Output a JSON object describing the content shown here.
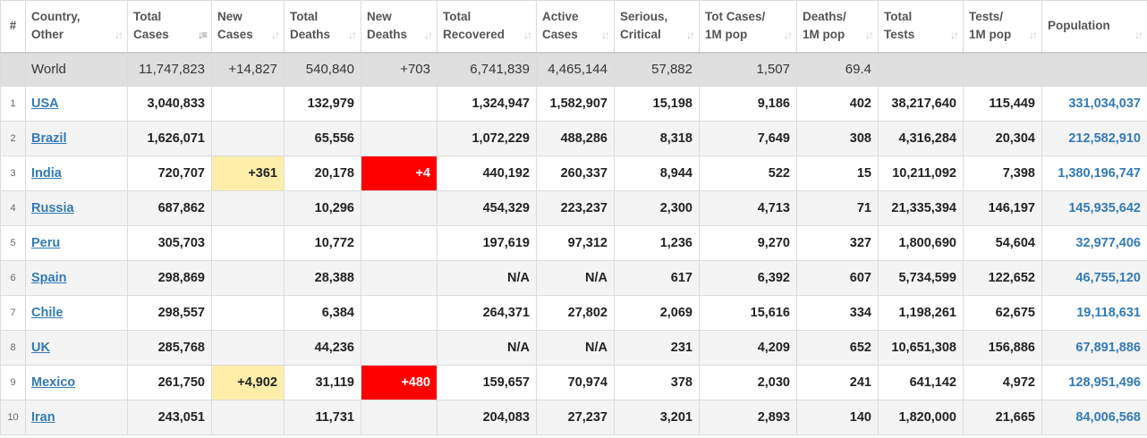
{
  "headers": [
    {
      "key": "num",
      "line1": "#",
      "line2": ""
    },
    {
      "key": "country",
      "line1": "Country,",
      "line2": "Other"
    },
    {
      "key": "total_cases",
      "line1": "Total",
      "line2": "Cases"
    },
    {
      "key": "new_cases",
      "line1": "New",
      "line2": "Cases"
    },
    {
      "key": "total_deaths",
      "line1": "Total",
      "line2": "Deaths"
    },
    {
      "key": "new_deaths",
      "line1": "New",
      "line2": "Deaths"
    },
    {
      "key": "total_recovered",
      "line1": "Total",
      "line2": "Recovered"
    },
    {
      "key": "active_cases",
      "line1": "Active",
      "line2": "Cases"
    },
    {
      "key": "serious_critical",
      "line1": "Serious,",
      "line2": "Critical"
    },
    {
      "key": "tot_cases_per_1m",
      "line1": "Tot Cases/",
      "line2": "1M pop"
    },
    {
      "key": "deaths_per_1m",
      "line1": "Deaths/",
      "line2": "1M pop"
    },
    {
      "key": "total_tests",
      "line1": "Total",
      "line2": "Tests"
    },
    {
      "key": "tests_per_1m",
      "line1": "Tests/",
      "line2": "1M pop"
    },
    {
      "key": "population",
      "line1": "Population",
      "line2": ""
    }
  ],
  "sort": {
    "column": "total_cases",
    "direction": "desc"
  },
  "highlight_colors": {
    "new_cases": "#ffeeaa",
    "new_deaths": "#ff0000",
    "link": "#337ab7",
    "world_row": "#dfdfdf"
  },
  "world": {
    "country": "World",
    "total_cases": "11,747,823",
    "new_cases": "+14,827",
    "total_deaths": "540,840",
    "new_deaths": "+703",
    "total_recovered": "6,741,839",
    "active_cases": "4,465,144",
    "serious_critical": "57,882",
    "tot_cases_per_1m": "1,507",
    "deaths_per_1m": "69.4",
    "total_tests": "",
    "tests_per_1m": "",
    "population": ""
  },
  "rows": [
    {
      "num": "1",
      "country": "USA",
      "total_cases": "3,040,833",
      "new_cases": "",
      "total_deaths": "132,979",
      "new_deaths": "",
      "total_recovered": "1,324,947",
      "active_cases": "1,582,907",
      "serious_critical": "15,198",
      "tot_cases_per_1m": "9,186",
      "deaths_per_1m": "402",
      "total_tests": "38,217,640",
      "tests_per_1m": "115,449",
      "population": "331,034,037"
    },
    {
      "num": "2",
      "country": "Brazil",
      "total_cases": "1,626,071",
      "new_cases": "",
      "total_deaths": "65,556",
      "new_deaths": "",
      "total_recovered": "1,072,229",
      "active_cases": "488,286",
      "serious_critical": "8,318",
      "tot_cases_per_1m": "7,649",
      "deaths_per_1m": "308",
      "total_tests": "4,316,284",
      "tests_per_1m": "20,304",
      "population": "212,582,910"
    },
    {
      "num": "3",
      "country": "India",
      "total_cases": "720,707",
      "new_cases": "+361",
      "total_deaths": "20,178",
      "new_deaths": "+4",
      "total_recovered": "440,192",
      "active_cases": "260,337",
      "serious_critical": "8,944",
      "tot_cases_per_1m": "522",
      "deaths_per_1m": "15",
      "total_tests": "10,211,092",
      "tests_per_1m": "7,398",
      "population": "1,380,196,747"
    },
    {
      "num": "4",
      "country": "Russia",
      "total_cases": "687,862",
      "new_cases": "",
      "total_deaths": "10,296",
      "new_deaths": "",
      "total_recovered": "454,329",
      "active_cases": "223,237",
      "serious_critical": "2,300",
      "tot_cases_per_1m": "4,713",
      "deaths_per_1m": "71",
      "total_tests": "21,335,394",
      "tests_per_1m": "146,197",
      "population": "145,935,642"
    },
    {
      "num": "5",
      "country": "Peru",
      "total_cases": "305,703",
      "new_cases": "",
      "total_deaths": "10,772",
      "new_deaths": "",
      "total_recovered": "197,619",
      "active_cases": "97,312",
      "serious_critical": "1,236",
      "tot_cases_per_1m": "9,270",
      "deaths_per_1m": "327",
      "total_tests": "1,800,690",
      "tests_per_1m": "54,604",
      "population": "32,977,406"
    },
    {
      "num": "6",
      "country": "Spain",
      "total_cases": "298,869",
      "new_cases": "",
      "total_deaths": "28,388",
      "new_deaths": "",
      "total_recovered": "N/A",
      "active_cases": "N/A",
      "serious_critical": "617",
      "tot_cases_per_1m": "6,392",
      "deaths_per_1m": "607",
      "total_tests": "5,734,599",
      "tests_per_1m": "122,652",
      "population": "46,755,120"
    },
    {
      "num": "7",
      "country": "Chile",
      "total_cases": "298,557",
      "new_cases": "",
      "total_deaths": "6,384",
      "new_deaths": "",
      "total_recovered": "264,371",
      "active_cases": "27,802",
      "serious_critical": "2,069",
      "tot_cases_per_1m": "15,616",
      "deaths_per_1m": "334",
      "total_tests": "1,198,261",
      "tests_per_1m": "62,675",
      "population": "19,118,631"
    },
    {
      "num": "8",
      "country": "UK",
      "total_cases": "285,768",
      "new_cases": "",
      "total_deaths": "44,236",
      "new_deaths": "",
      "total_recovered": "N/A",
      "active_cases": "N/A",
      "serious_critical": "231",
      "tot_cases_per_1m": "4,209",
      "deaths_per_1m": "652",
      "total_tests": "10,651,308",
      "tests_per_1m": "156,886",
      "population": "67,891,886"
    },
    {
      "num": "9",
      "country": "Mexico",
      "total_cases": "261,750",
      "new_cases": "+4,902",
      "total_deaths": "31,119",
      "new_deaths": "+480",
      "total_recovered": "159,657",
      "active_cases": "70,974",
      "serious_critical": "378",
      "tot_cases_per_1m": "2,030",
      "deaths_per_1m": "241",
      "total_tests": "641,142",
      "tests_per_1m": "4,972",
      "population": "128,951,496"
    },
    {
      "num": "10",
      "country": "Iran",
      "total_cases": "243,051",
      "new_cases": "",
      "total_deaths": "11,731",
      "new_deaths": "",
      "total_recovered": "204,083",
      "active_cases": "27,237",
      "serious_critical": "3,201",
      "tot_cases_per_1m": "2,893",
      "deaths_per_1m": "140",
      "total_tests": "1,820,000",
      "tests_per_1m": "21,665",
      "population": "84,006,568"
    }
  ]
}
